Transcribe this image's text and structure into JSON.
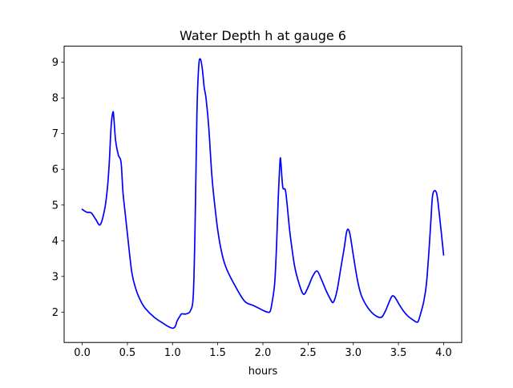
{
  "chart_data": {
    "type": "line",
    "title": "Water Depth h at gauge 6",
    "xlabel": "hours",
    "ylabel": "",
    "xlim": [
      -0.2,
      4.2
    ],
    "ylim": [
      1.15,
      9.45
    ],
    "xticks": [
      0.0,
      0.5,
      1.0,
      1.5,
      2.0,
      2.5,
      3.0,
      3.5,
      4.0
    ],
    "xtick_labels": [
      "0.0",
      "0.5",
      "1.0",
      "1.5",
      "2.0",
      "2.5",
      "3.0",
      "3.5",
      "4.0"
    ],
    "yticks": [
      2,
      3,
      4,
      5,
      6,
      7,
      8,
      9
    ],
    "ytick_labels": [
      "2",
      "3",
      "4",
      "5",
      "6",
      "7",
      "8",
      "9"
    ],
    "grid": false,
    "series": [
      {
        "color": "#0000ff",
        "x": [
          0.0,
          0.05,
          0.1,
          0.15,
          0.2,
          0.25,
          0.28,
          0.3,
          0.32,
          0.34,
          0.35,
          0.37,
          0.4,
          0.43,
          0.45,
          0.47,
          0.5,
          0.55,
          0.6,
          0.65,
          0.7,
          0.8,
          0.9,
          0.95,
          1.0,
          1.03,
          1.05,
          1.08,
          1.1,
          1.15,
          1.2,
          1.23,
          1.25,
          1.27,
          1.29,
          1.31,
          1.33,
          1.35,
          1.37,
          1.4,
          1.43,
          1.45,
          1.5,
          1.55,
          1.6,
          1.7,
          1.8,
          1.9,
          2.0,
          2.05,
          2.08,
          2.1,
          2.13,
          2.15,
          2.17,
          2.19,
          2.2,
          2.22,
          2.25,
          2.28,
          2.3,
          2.35,
          2.4,
          2.45,
          2.5,
          2.55,
          2.6,
          2.65,
          2.7,
          2.75,
          2.78,
          2.82,
          2.86,
          2.9,
          2.93,
          2.96,
          3.0,
          3.05,
          3.1,
          3.2,
          3.3,
          3.35,
          3.4,
          3.43,
          3.46,
          3.5,
          3.55,
          3.6,
          3.65,
          3.68,
          3.7,
          3.72,
          3.75,
          3.78,
          3.81,
          3.84,
          3.86,
          3.88,
          3.92,
          3.95,
          4.0
        ],
        "y": [
          4.88,
          4.8,
          4.78,
          4.6,
          4.45,
          4.9,
          5.5,
          6.2,
          7.2,
          7.6,
          7.45,
          6.8,
          6.4,
          6.2,
          5.4,
          4.9,
          4.2,
          3.1,
          2.6,
          2.3,
          2.1,
          1.85,
          1.68,
          1.6,
          1.55,
          1.6,
          1.75,
          1.88,
          1.95,
          1.95,
          2.05,
          2.5,
          4.5,
          7.6,
          8.9,
          9.08,
          8.8,
          8.3,
          8.0,
          7.2,
          6.0,
          5.4,
          4.3,
          3.6,
          3.2,
          2.7,
          2.3,
          2.18,
          2.05,
          2.0,
          2.02,
          2.25,
          2.8,
          3.8,
          5.2,
          6.25,
          6.15,
          5.5,
          5.4,
          4.7,
          4.2,
          3.3,
          2.8,
          2.5,
          2.7,
          3.0,
          3.15,
          2.9,
          2.6,
          2.35,
          2.28,
          2.6,
          3.2,
          3.8,
          4.28,
          4.22,
          3.6,
          2.85,
          2.4,
          2.0,
          1.85,
          2.0,
          2.3,
          2.45,
          2.42,
          2.25,
          2.05,
          1.9,
          1.8,
          1.75,
          1.72,
          1.75,
          2.0,
          2.3,
          2.8,
          3.8,
          4.6,
          5.3,
          5.35,
          4.8,
          3.6
        ]
      }
    ]
  }
}
